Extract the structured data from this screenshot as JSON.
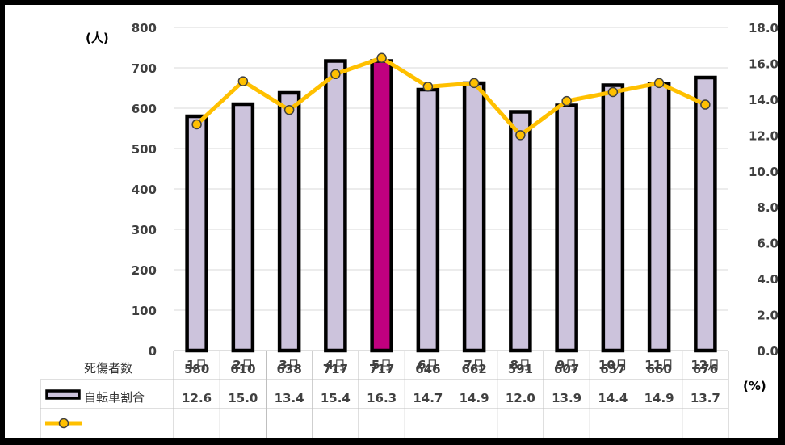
{
  "chart_data": {
    "type": "bar",
    "categories": [
      "1",
      "2",
      "3",
      "4",
      "5",
      "6",
      "7",
      "8",
      "9",
      "10",
      "11",
      "12"
    ],
    "month_suffix": "月",
    "series": [
      {
        "name": "死傷者数",
        "values": [
          580,
          610,
          638,
          717,
          717,
          646,
          662,
          591,
          607,
          657,
          660,
          676
        ],
        "axis": "left",
        "type": "bar",
        "fill": "#ccc3dc",
        "highlight_fill": "#c0007f",
        "highlight_index": 4,
        "stroke": "#000000"
      },
      {
        "name": "自転車割合",
        "values": [
          12.6,
          15.0,
          13.4,
          15.4,
          16.3,
          14.7,
          14.9,
          12.0,
          13.9,
          14.4,
          14.9,
          13.7
        ],
        "axis": "right",
        "type": "line",
        "line_color": "#ffc000",
        "marker_stroke": "#404040"
      }
    ],
    "left_axis": {
      "unit_label": "(人)",
      "ylim": [
        0,
        800
      ],
      "ticks": [
        "0",
        "100",
        "200",
        "300",
        "400",
        "500",
        "600",
        "700",
        "800"
      ]
    },
    "right_axis": {
      "unit_label": "(%)",
      "ylim": [
        0,
        18
      ],
      "ticks": [
        "0.0",
        "2.0",
        "4.0",
        "6.0",
        "8.0",
        "10.0",
        "12.0",
        "14.0",
        "16.0",
        "18.0"
      ]
    },
    "data_table": {
      "rows": [
        {
          "label": "死傷者数",
          "values": [
            "580",
            "610",
            "638",
            "717",
            "717",
            "646",
            "662",
            "591",
            "607",
            "657",
            "660",
            "676"
          ]
        },
        {
          "label": "自転車割合",
          "values": [
            "12.6",
            "15.0",
            "13.4",
            "15.4",
            "16.3",
            "14.7",
            "14.9",
            "12.0",
            "13.9",
            "14.4",
            "14.9",
            "13.7"
          ]
        }
      ]
    },
    "grid": true
  }
}
